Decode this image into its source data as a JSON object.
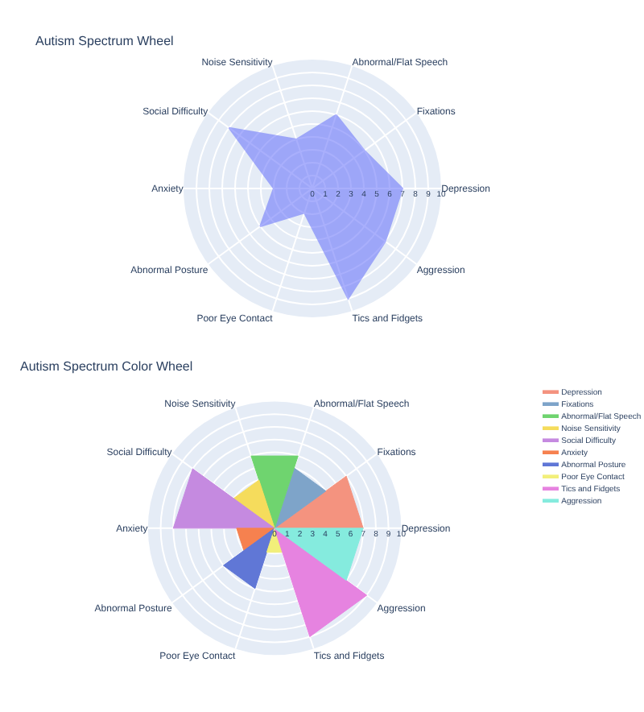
{
  "chart_data": [
    {
      "type": "radar",
      "title": "Autism Spectrum Wheel",
      "categories": [
        "Abnormal/Flat Speech",
        "Fixations",
        "Depression",
        "Aggression",
        "Tics and Fidgets",
        "Poor Eye Contact",
        "Abnormal Posture",
        "Anxiety",
        "Social Difficulty",
        "Noise Sensitivity"
      ],
      "series": [
        {
          "color": "#636efa",
          "values": [
            6,
            5,
            7,
            7,
            9,
            2,
            5,
            3,
            8,
            4
          ]
        }
      ],
      "ylim": [
        0,
        10
      ],
      "yticks": [
        0,
        1,
        2,
        3,
        4,
        5,
        6,
        7,
        8,
        9,
        10
      ],
      "grid": true
    },
    {
      "type": "radar",
      "title": "Autism Spectrum Color Wheel",
      "categories": [
        "Abnormal/Flat Speech",
        "Fixations",
        "Depression",
        "Aggression",
        "Tics and Fidgets",
        "Poor Eye Contact",
        "Abnormal Posture",
        "Anxiety",
        "Social Difficulty",
        "Noise Sensitivity"
      ],
      "series": [
        {
          "name": "Depression",
          "type": "area",
          "color": "#f4937f",
          "values": [
            0,
            7,
            7,
            0,
            0,
            0,
            0,
            0,
            0,
            0
          ]
        },
        {
          "name": "Fixations",
          "type": "area",
          "color": "#7ea4c9",
          "values": [
            5,
            5,
            0,
            0,
            0,
            0,
            0,
            0,
            0,
            0
          ]
        },
        {
          "name": "Abnormal/Flat Speech",
          "type": "area",
          "color": "#6fd46f",
          "values": [
            6,
            0,
            0,
            0,
            0,
            0,
            0,
            0,
            0,
            6
          ]
        },
        {
          "name": "Noise Sensitivity",
          "type": "area",
          "color": "#f5dc5c",
          "values": [
            0,
            0,
            0,
            0,
            0,
            0,
            0,
            0,
            4,
            4
          ]
        },
        {
          "name": "Social Difficulty",
          "type": "area",
          "color": "#c58ae0",
          "values": [
            0,
            0,
            0,
            0,
            0,
            0,
            0,
            8,
            8,
            0
          ]
        },
        {
          "name": "Anxiety",
          "type": "area",
          "color": "#f6814f",
          "values": [
            0,
            0,
            0,
            0,
            0,
            0,
            3,
            3,
            0,
            0
          ]
        },
        {
          "name": "Abnormal Posture",
          "type": "area",
          "color": "#6077d6",
          "values": [
            0,
            0,
            0,
            0,
            0,
            5,
            5,
            0,
            0,
            0
          ]
        },
        {
          "name": "Poor Eye Contact",
          "type": "area",
          "color": "#f2ef7a",
          "values": [
            0,
            0,
            0,
            0,
            2,
            2,
            0,
            0,
            0,
            0
          ]
        },
        {
          "name": "Tics and Fidgets",
          "type": "area",
          "color": "#e683e0",
          "values": [
            0,
            0,
            0,
            9,
            9,
            0,
            0,
            0,
            0,
            0
          ]
        },
        {
          "name": "Aggression",
          "type": "area",
          "color": "#85ebde",
          "values": [
            0,
            0,
            7,
            7,
            0,
            0,
            0,
            0,
            0,
            0
          ]
        }
      ],
      "ylim": [
        0,
        10
      ],
      "yticks": [
        0,
        1,
        2,
        3,
        4,
        5,
        6,
        7,
        8,
        9,
        10
      ],
      "grid": true,
      "legend": "top right"
    }
  ]
}
